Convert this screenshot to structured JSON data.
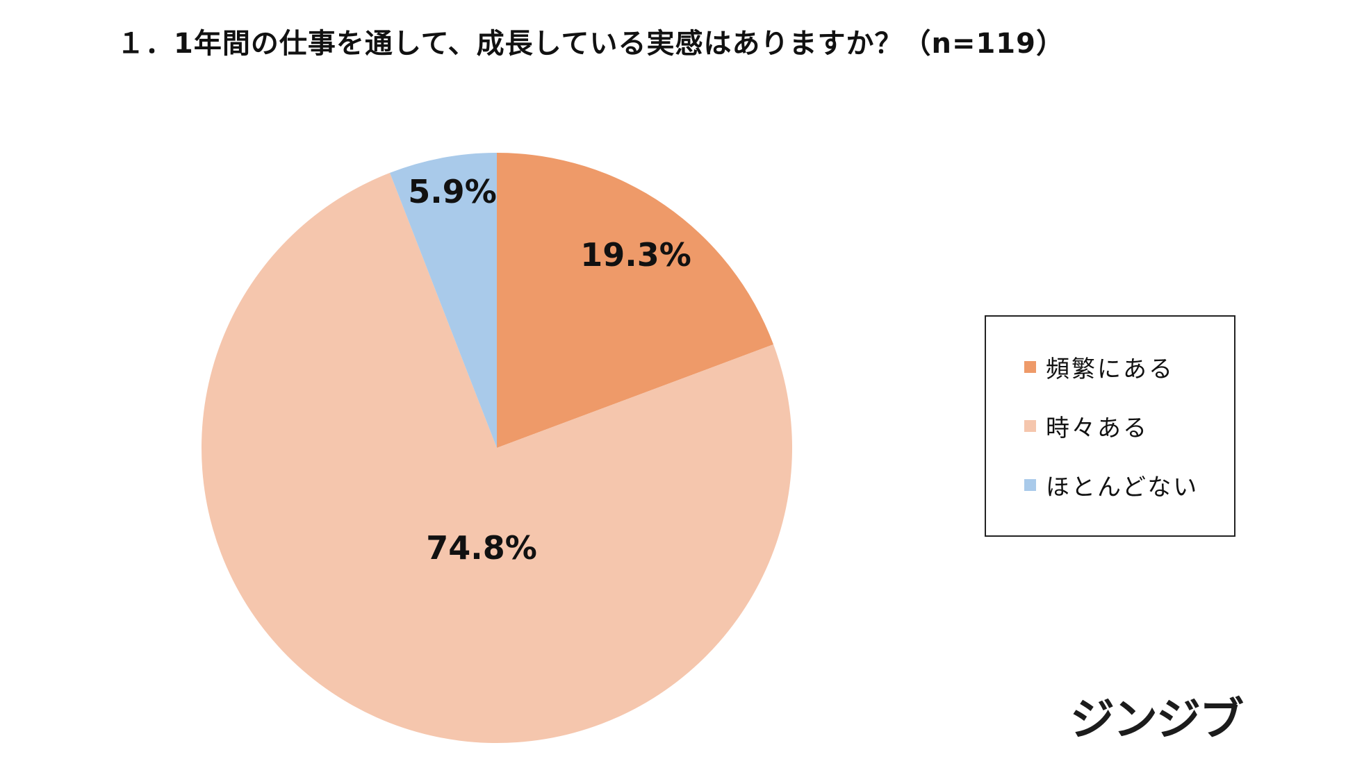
{
  "chart_data": {
    "type": "pie",
    "title": "１．1年間の仕事を通して、成長している実感はありますか？（n=119）",
    "series": [
      {
        "name": "頻繁にある",
        "value": 19.3,
        "label": "19.3%",
        "color": "#ee9a69"
      },
      {
        "name": "時々ある",
        "value": 74.8,
        "label": "74.8%",
        "color": "#f5c6ad"
      },
      {
        "name": "ほとんどない",
        "value": 5.9,
        "label": "5.9%",
        "color": "#a9caea"
      }
    ],
    "start_angle": "12 o'clock",
    "direction": "clockwise",
    "legend_position": "right"
  },
  "logo_text": "ジンジブ"
}
